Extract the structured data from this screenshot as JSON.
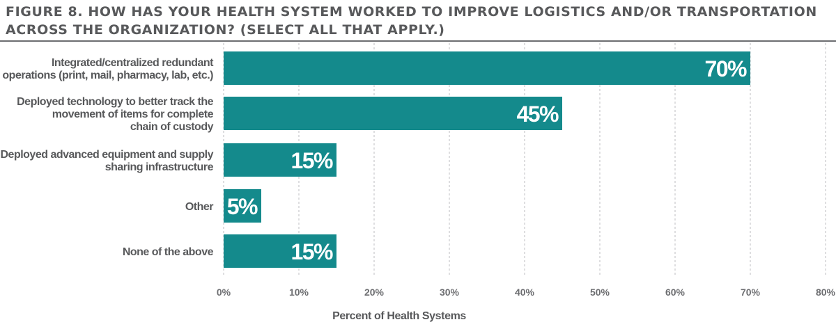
{
  "title": "FIGURE 8. HOW HAS YOUR HEALTH SYSTEM WORKED TO IMPROVE LOGISTICS AND/OR TRANSPORTATION ACROSS THE ORGANIZATION? (SELECT ALL THAT APPLY.)",
  "colors": {
    "bar": "#148a8c",
    "grid": "#bcbec0",
    "text": "#58595b",
    "rule": "#6d6e71"
  },
  "chart_data": {
    "type": "bar",
    "orientation": "horizontal",
    "categories": [
      [
        "Integrated/centralized redundant",
        "operations (print, mail, pharmacy, lab, etc.)"
      ],
      [
        "Deployed technology to better track the",
        "movement of items for complete",
        "chain of custody"
      ],
      [
        "Deployed advanced equipment and supply",
        "sharing infrastructure"
      ],
      [
        "Other"
      ],
      [
        "None of the above"
      ]
    ],
    "values": [
      70,
      45,
      15,
      5,
      15
    ],
    "data_labels": [
      "70%",
      "45%",
      "15%",
      "5%",
      "15%"
    ],
    "xlim": [
      0,
      80
    ],
    "xticks": [
      0,
      10,
      20,
      30,
      40,
      50,
      60,
      70,
      80
    ],
    "xtick_labels": [
      "0%",
      "10%",
      "20%",
      "30%",
      "40%",
      "50%",
      "60%",
      "70%",
      "80%"
    ],
    "xlabel": "Percent of Health Systems",
    "grid": "vertical dashed"
  }
}
